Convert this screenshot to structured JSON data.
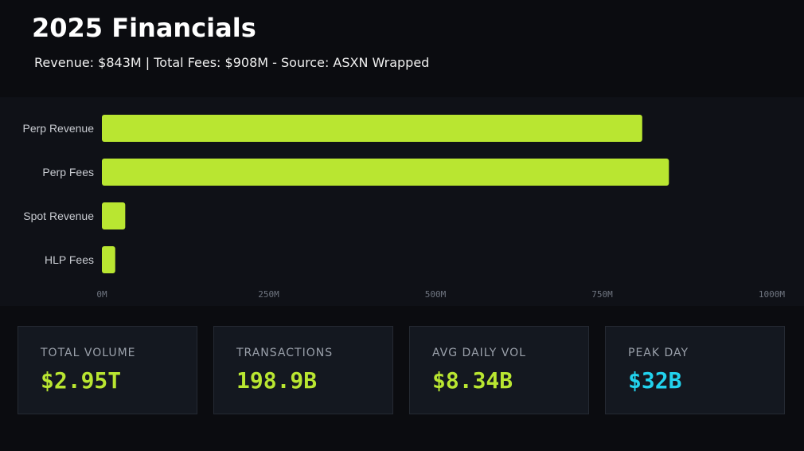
{
  "header": {
    "title": "2025 Financials",
    "subtitle": "Revenue: $843M | Total Fees: $908M - Source: ASXN Wrapped"
  },
  "colors": {
    "background": "#0b0c10",
    "bar": "#b9e631",
    "accent_green": "#b9e631",
    "accent_cyan": "#22d3ee"
  },
  "chart_data": {
    "type": "bar",
    "orientation": "horizontal",
    "categories": [
      "Perp Revenue",
      "Perp Fees",
      "Spot Revenue",
      "HLP Fees"
    ],
    "values": [
      810,
      850,
      35,
      20
    ],
    "xlim": [
      0,
      1000
    ],
    "x_ticks": [
      0,
      250,
      500,
      750,
      1000
    ],
    "x_tick_labels": [
      "0M",
      "250M",
      "500M",
      "750M",
      "1000M"
    ],
    "grid": false,
    "legend": "none"
  },
  "stats": [
    {
      "label": "TOTAL VOLUME",
      "value": "$2.95T",
      "color": "#b9e631"
    },
    {
      "label": "TRANSACTIONS",
      "value": "198.9B",
      "color": "#b9e631"
    },
    {
      "label": "AVG DAILY VOL",
      "value": "$8.34B",
      "color": "#b9e631"
    },
    {
      "label": "PEAK DAY",
      "value": "$32B",
      "color": "#22d3ee"
    }
  ]
}
